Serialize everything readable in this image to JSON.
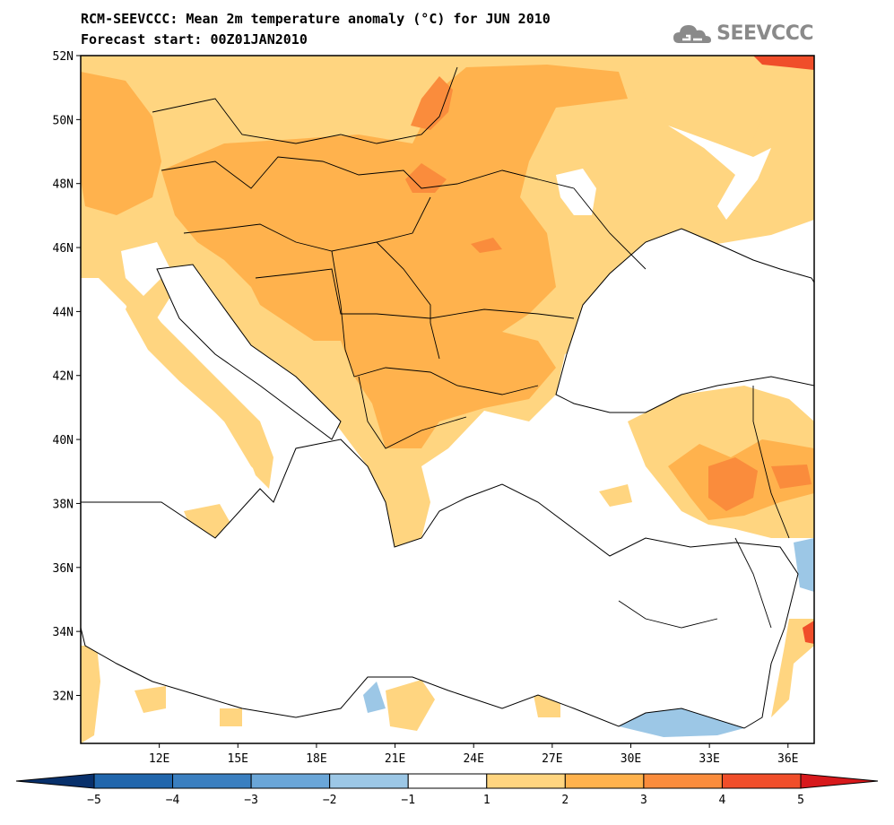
{
  "header": {
    "title": "RCM-SEEVCCC: Mean 2m temperature anomaly (°C) for JUN 2010",
    "subtitle": "Forecast start: 00Z01JAN2010"
  },
  "logo": {
    "text": "SEEVCCC",
    "icon": "cloud-logo-icon"
  },
  "map": {
    "lon_range": [
      9,
      37
    ],
    "lat_range": [
      30.5,
      52
    ],
    "lat_ticks": [
      "52N",
      "50N",
      "48N",
      "46N",
      "44N",
      "42N",
      "40N",
      "38N",
      "36N",
      "34N",
      "32N"
    ],
    "lon_ticks": [
      "12E",
      "15E",
      "18E",
      "21E",
      "24E",
      "27E",
      "30E",
      "33E",
      "36E"
    ],
    "land_fill": "#ffd580"
  },
  "colorbar": {
    "labels": [
      "−5",
      "−4",
      "−3",
      "−2",
      "−1",
      "1",
      "2",
      "3",
      "4",
      "5"
    ],
    "colors": [
      "#2166ac",
      "#3a7fc0",
      "#6aa6d8",
      "#9cc7e6",
      "#ffffff",
      "#ffd580",
      "#ffb24d",
      "#fa8c3c",
      "#f04e2a"
    ],
    "low_color": "#08306b",
    "high_color": "#d7191c"
  }
}
